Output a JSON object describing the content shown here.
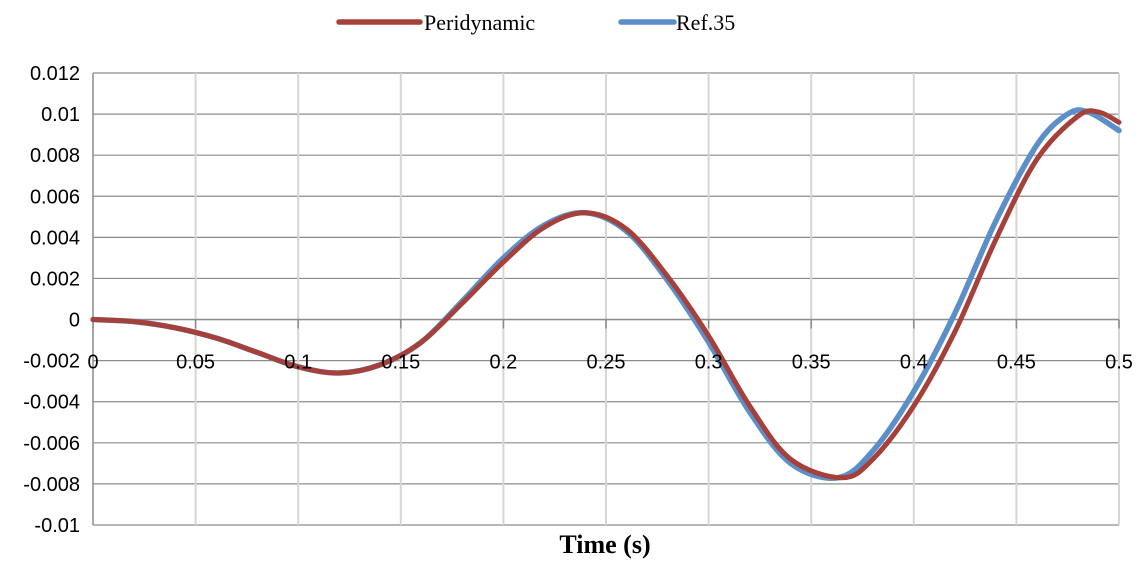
{
  "chart_data": {
    "type": "line",
    "title": "",
    "xlabel": "Time (s)",
    "ylabel": "",
    "xlim": [
      0,
      0.5
    ],
    "ylim": [
      -0.01,
      0.012
    ],
    "x_ticks": [
      "0",
      "0.05",
      "0.1",
      "0.15",
      "0.2",
      "0.25",
      "0.3",
      "0.35",
      "0.4",
      "0.45",
      "0.5"
    ],
    "y_ticks": [
      "0.012",
      "0.01",
      "0.008",
      "0.006",
      "0.004",
      "0.002",
      "0",
      "-0.002",
      "-0.004",
      "-0.006",
      "-0.008",
      "-0.01"
    ],
    "grid": true,
    "legend_position": "top-center",
    "series": [
      {
        "name": "Peridynamic",
        "color": "#A5403B",
        "x": [
          0,
          0.02,
          0.04,
          0.06,
          0.08,
          0.1,
          0.12,
          0.14,
          0.16,
          0.18,
          0.2,
          0.22,
          0.24,
          0.26,
          0.28,
          0.3,
          0.32,
          0.34,
          0.365,
          0.38,
          0.4,
          0.42,
          0.44,
          0.46,
          0.48,
          0.49,
          0.5
        ],
        "y": [
          0,
          -0.0001,
          -0.0004,
          -0.0009,
          -0.0016,
          -0.0023,
          -0.0026,
          -0.0022,
          -0.0011,
          0.0008,
          0.0028,
          0.0045,
          0.0052,
          0.0044,
          0.0021,
          -0.0008,
          -0.0042,
          -0.0068,
          -0.0077,
          -0.0068,
          -0.0042,
          -0.0006,
          0.0039,
          0.0078,
          0.0099,
          0.0101,
          0.0096
        ]
      },
      {
        "name": "Ref.35",
        "color": "#5B8FC9",
        "x": [
          0,
          0.02,
          0.04,
          0.06,
          0.08,
          0.1,
          0.12,
          0.14,
          0.16,
          0.18,
          0.2,
          0.22,
          0.24,
          0.26,
          0.28,
          0.3,
          0.32,
          0.34,
          0.363,
          0.38,
          0.4,
          0.42,
          0.44,
          0.46,
          0.475,
          0.485,
          0.5
        ],
        "y": [
          0,
          -0.0001,
          -0.0004,
          -0.0009,
          -0.0016,
          -0.0023,
          -0.0026,
          -0.0022,
          -0.0011,
          0.0009,
          0.003,
          0.0046,
          0.0052,
          0.0043,
          0.0019,
          -0.0011,
          -0.0045,
          -0.007,
          -0.0077,
          -0.0064,
          -0.0035,
          0.0003,
          0.0048,
          0.0085,
          0.01,
          0.0101,
          0.0092
        ]
      }
    ]
  }
}
